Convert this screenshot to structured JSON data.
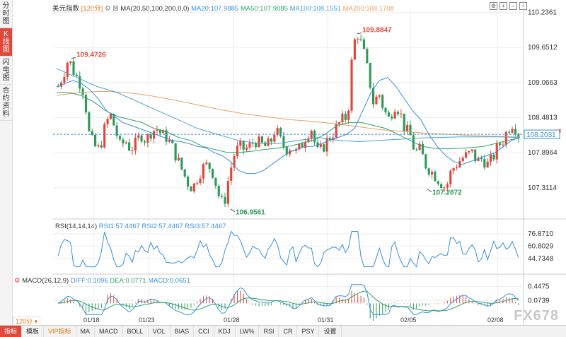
{
  "sidebar": {
    "tabs": [
      {
        "label": "分时图",
        "active": false
      },
      {
        "label": "K线图",
        "active": true
      },
      {
        "label": "闪电图",
        "active": false
      },
      {
        "label": "合约资料",
        "active": false
      }
    ]
  },
  "header": {
    "symbol": "美元指数",
    "period": "120分",
    "ma_label": "MA(20,50,100,200,0,0)",
    "ma20": "MA20:107.9885",
    "ma50": "MA50:107.9085",
    "ma100": "MA100:108.1551",
    "ma200": "MA200:108.1708"
  },
  "rsi_header": {
    "label": "RSI(14,14,14)",
    "rsi1": "RSI1:57.4467",
    "rsi2": "RSI2:57.4467",
    "rsi3": "RSI3:57.4467"
  },
  "macd_header": {
    "label": "MACD(26,12,9)",
    "diff": "DIFF:0.1096",
    "dea": "DEA:0.0771",
    "macd": "MACD:0.0651"
  },
  "price_axis": [
    "110.2361",
    "109.6512",
    "109.0663",
    "108.4813",
    "107.8964",
    "107.3114"
  ],
  "rsi_axis": [
    "76.8710",
    "60.8029",
    "44.7348"
  ],
  "macd_axis": [
    "0.4475",
    "0.0739"
  ],
  "current_price": "108.2031",
  "annotations": {
    "high_left": "109.4726",
    "high_mid": "109.8847",
    "low_left": "106.9561",
    "low_right": "107.2872"
  },
  "date_labels": [
    "01/18",
    "01/23",
    "01/28",
    "01/31",
    "02/05",
    "02/08"
  ],
  "bottom_bar": {
    "period": "120分",
    "items": [
      "指标",
      "模板",
      "VIP指标",
      "MA",
      "MACD",
      "BOLL",
      "VOL",
      "BIAS",
      "CCI",
      "KDJ",
      "LW%",
      "RSI",
      "CR",
      "PSY",
      "设置"
    ]
  },
  "watermark": "FX678",
  "colors": {
    "up": "#e0483c",
    "down": "#2e9a5a",
    "ma20": "#3a8fd9",
    "ma50": "#2ea26a",
    "ma100": "#4aa0d0",
    "ma200": "#e8a060",
    "accent": "#e0483c",
    "price_line": "#3a8fd9"
  },
  "toolbar": {
    "icons": [
      "settings-icon",
      "add-icon",
      "minimize-icon",
      "restore-icon",
      "maximize-icon"
    ]
  },
  "chart_data": {
    "type": "candlestick",
    "period": "120分",
    "close_path": [
      109.0,
      109.2,
      109.47,
      109.25,
      109.1,
      108.9,
      108.2,
      108.0,
      107.95,
      108.3,
      108.55,
      108.3,
      108.0,
      108.1,
      107.95,
      108.05,
      108.2,
      108.1,
      108.25,
      108.3,
      108.2,
      108.15,
      108.0,
      107.8,
      107.6,
      107.4,
      107.3,
      107.5,
      107.65,
      107.7,
      107.55,
      107.2,
      107.0,
      107.5,
      107.85,
      108.0,
      107.95,
      108.0,
      108.1,
      108.05,
      108.0,
      108.05,
      108.3,
      108.1,
      107.95,
      108.0,
      107.9,
      108.0,
      108.2,
      108.3,
      107.9,
      107.95,
      108.1,
      108.2,
      108.35,
      108.45,
      108.5,
      109.7,
      109.88,
      109.6,
      109.2,
      108.7,
      108.9,
      108.6,
      108.45,
      108.7,
      108.6,
      108.3,
      108.2,
      107.9,
      107.95,
      107.7,
      107.6,
      107.5,
      107.4,
      107.3,
      107.6,
      107.7,
      107.8,
      107.85,
      107.9,
      107.75,
      107.8,
      107.7,
      107.8,
      108.0,
      108.1,
      108.3,
      108.4,
      108.2
    ],
    "ma20": [
      109.0,
      109.05,
      109.1,
      109.05,
      108.95,
      108.8,
      108.6,
      108.5,
      108.4,
      108.35,
      108.3,
      108.25,
      108.2,
      108.15,
      108.1,
      108.08,
      108.05,
      108.0,
      107.98,
      107.9,
      107.85,
      107.75,
      107.6,
      107.55,
      107.55,
      107.6,
      107.7,
      107.8,
      107.9,
      107.95,
      108.0,
      108.0,
      108.05,
      108.1,
      108.15,
      108.2,
      108.3,
      108.6,
      108.9,
      109.1,
      109.15,
      109.0,
      108.8,
      108.6,
      108.45,
      108.2,
      108.0,
      107.85,
      107.75,
      107.7,
      107.75,
      107.8,
      107.85,
      107.9,
      108.0,
      108.1,
      108.15
    ],
    "ma50": [
      108.9,
      108.9,
      108.85,
      108.75,
      108.6,
      108.5,
      108.45,
      108.4,
      108.3,
      108.25,
      108.15,
      108.1,
      108.0,
      107.95,
      107.9,
      107.9,
      107.92,
      107.95,
      107.97,
      108.0,
      108.05,
      108.1,
      108.2,
      108.35,
      108.4,
      108.4,
      108.35,
      108.3,
      108.2,
      108.1,
      108.0,
      107.97,
      107.96,
      107.97,
      107.98,
      108.0,
      108.05,
      108.1,
      108.15
    ],
    "ma100": [
      109.3,
      109.15,
      109.0,
      108.9,
      108.75,
      108.6,
      108.45,
      108.3,
      108.2,
      108.1,
      108.05,
      108.05,
      108.1,
      108.15,
      108.1,
      108.08,
      108.1,
      108.12,
      108.14,
      108.15,
      108.16,
      108.16,
      108.16,
      108.15
    ],
    "ma200": [
      108.85,
      108.9,
      108.92,
      108.9,
      108.85,
      108.78,
      108.7,
      108.62,
      108.55,
      108.5,
      108.45,
      108.42,
      108.38,
      108.33,
      108.28,
      108.25,
      108.22,
      108.2,
      108.18,
      108.17,
      108.17
    ]
  }
}
